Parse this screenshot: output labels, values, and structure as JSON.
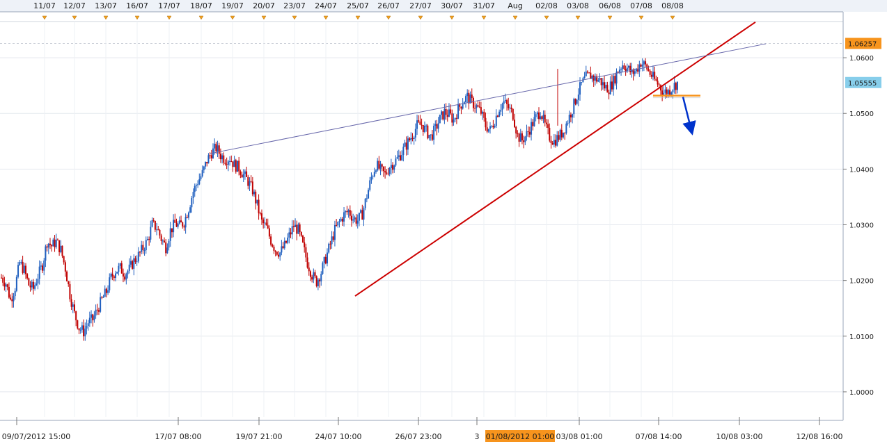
{
  "chart_data": {
    "type": "candlestick",
    "title": "",
    "xlabel": "",
    "ylabel": "",
    "ylim": [
      0.9955,
      1.0665
    ],
    "y_ticks": [
      "1.0000",
      "1.0100",
      "1.0200",
      "1.0300",
      "1.0400",
      "1.0500",
      "1.0600"
    ],
    "top_date_labels": [
      "11/07",
      "12/07",
      "13/07",
      "16/07",
      "17/07",
      "18/07",
      "19/07",
      "20/07",
      "23/07",
      "24/07",
      "25/07",
      "26/07",
      "27/07",
      "30/07",
      "31/07",
      "Aug",
      "02/08",
      "03/08",
      "06/08",
      "07/08",
      "08/08"
    ],
    "bottom_time_labels": [
      "09/07/2012 15:00",
      "17/07 08:00",
      "19/07 21:00",
      "24/07 10:00",
      "26/07 23:00",
      "3",
      "03/08 01:00",
      "07/08 14:00",
      "10/08 03:00",
      "12/08 16:00"
    ],
    "crosshair_time_label": "01/08/2012 01:00",
    "price_labels": [
      {
        "text": "1.06257",
        "value": 1.06257,
        "color": "#f7941d"
      },
      {
        "text": "1.05555",
        "value": 1.05555,
        "color": "#87ceeb"
      }
    ],
    "price_path": [
      [
        0,
        1.0205
      ],
      [
        1.5,
        1.0195
      ],
      [
        3,
        1.0165
      ],
      [
        4.5,
        1.0188
      ],
      [
        6,
        1.0232
      ],
      [
        7.5,
        1.0218
      ],
      [
        9,
        1.0192
      ],
      [
        10.5,
        1.0185
      ],
      [
        12,
        1.0208
      ],
      [
        13.5,
        1.0228
      ],
      [
        15,
        1.027
      ],
      [
        16.5,
        1.0262
      ],
      [
        18,
        1.027
      ],
      [
        19.5,
        1.0255
      ],
      [
        21,
        1.0222
      ],
      [
        22.5,
        1.0175
      ],
      [
        24,
        1.014
      ],
      [
        25.5,
        1.0115
      ],
      [
        27,
        1.0108
      ],
      [
        28.5,
        1.0125
      ],
      [
        30,
        1.013
      ],
      [
        31.5,
        1.0148
      ],
      [
        33,
        1.0165
      ],
      [
        34.5,
        1.018
      ],
      [
        36,
        1.0205
      ],
      [
        37.5,
        1.0218
      ],
      [
        39,
        1.0222
      ],
      [
        40.5,
        1.0212
      ],
      [
        42,
        1.022
      ],
      [
        43.5,
        1.0235
      ],
      [
        45,
        1.0245
      ],
      [
        46.5,
        1.0258
      ],
      [
        48,
        1.0272
      ],
      [
        49.5,
        1.03
      ],
      [
        51,
        1.0295
      ],
      [
        52.5,
        1.0275
      ],
      [
        54,
        1.026
      ],
      [
        55.5,
        1.029
      ],
      [
        57,
        1.0302
      ],
      [
        58.5,
        1.0298
      ],
      [
        60,
        1.0305
      ],
      [
        61.5,
        1.033
      ],
      [
        63,
        1.036
      ],
      [
        64.5,
        1.0378
      ],
      [
        66,
        1.0392
      ],
      [
        67.5,
        1.0415
      ],
      [
        69,
        1.043
      ],
      [
        70.5,
        1.0438
      ],
      [
        72,
        1.0425
      ],
      [
        73.5,
        1.0418
      ],
      [
        75,
        1.042
      ],
      [
        76.5,
        1.0408
      ],
      [
        78,
        1.0402
      ],
      [
        79.5,
        1.039
      ],
      [
        81,
        1.0378
      ],
      [
        82.5,
        1.0362
      ],
      [
        84,
        1.0335
      ],
      [
        85.5,
        1.0305
      ],
      [
        87,
        1.0295
      ],
      [
        88.5,
        1.0272
      ],
      [
        90,
        1.0255
      ],
      [
        91.5,
        1.025
      ],
      [
        93,
        1.0262
      ],
      [
        94.5,
        1.028
      ],
      [
        96,
        1.0298
      ],
      [
        97.5,
        1.029
      ],
      [
        99,
        1.0262
      ],
      [
        100.5,
        1.0232
      ],
      [
        102,
        1.021
      ],
      [
        103.5,
        1.0198
      ],
      [
        105,
        1.0215
      ],
      [
        106.5,
        1.024
      ],
      [
        108,
        1.0265
      ],
      [
        109.5,
        1.029
      ],
      [
        111,
        1.0305
      ],
      [
        112.5,
        1.0318
      ],
      [
        114,
        1.0325
      ],
      [
        115.5,
        1.0312
      ],
      [
        117,
        1.0308
      ],
      [
        118.5,
        1.032
      ],
      [
        120,
        1.0352
      ],
      [
        121.5,
        1.0385
      ],
      [
        123,
        1.0408
      ],
      [
        124.5,
        1.0398
      ],
      [
        126,
        1.039
      ],
      [
        127.5,
        1.0405
      ],
      [
        129,
        1.0412
      ],
      [
        130.5,
        1.0422
      ],
      [
        132,
        1.0435
      ],
      [
        133.5,
        1.0448
      ],
      [
        135,
        1.0462
      ],
      [
        136.5,
        1.0478
      ],
      [
        138,
        1.048
      ],
      [
        139.5,
        1.0468
      ],
      [
        141,
        1.0458
      ],
      [
        142.5,
        1.0472
      ],
      [
        144,
        1.049
      ],
      [
        145.5,
        1.0502
      ],
      [
        147,
        1.0498
      ],
      [
        148.5,
        1.0488
      ],
      [
        150,
        1.0508
      ],
      [
        151.5,
        1.0522
      ],
      [
        153,
        1.053
      ],
      [
        154.5,
        1.052
      ],
      [
        156,
        1.0512
      ],
      [
        157.5,
        1.0502
      ],
      [
        159,
        1.0478
      ],
      [
        160.5,
        1.047
      ],
      [
        162,
        1.0488
      ],
      [
        163.5,
        1.051
      ],
      [
        165,
        1.052
      ],
      [
        166.5,
        1.051
      ],
      [
        168,
        1.0498
      ],
      [
        169.5,
        1.046
      ],
      [
        171,
        1.0452
      ],
      [
        172.5,
        1.0462
      ],
      [
        174,
        1.0478
      ],
      [
        175.5,
        1.0492
      ],
      [
        177,
        1.0505
      ],
      [
        178.5,
        1.0478
      ],
      [
        180,
        1.0458
      ],
      [
        181.5,
        1.045
      ],
      [
        183,
        1.0458
      ],
      [
        184.5,
        1.0468
      ],
      [
        186,
        1.0488
      ],
      [
        187.5,
        1.0508
      ],
      [
        189,
        1.0532
      ],
      [
        190.5,
        1.0552
      ],
      [
        192,
        1.0565
      ],
      [
        193.5,
        1.0568
      ],
      [
        195,
        1.0562
      ],
      [
        196.5,
        1.056
      ],
      [
        198,
        1.0548
      ],
      [
        199.5,
        1.0545
      ],
      [
        201,
        1.0558
      ],
      [
        202.5,
        1.0578
      ],
      [
        204,
        1.0588
      ],
      [
        205.5,
        1.0582
      ],
      [
        207,
        1.0572
      ],
      [
        208.5,
        1.0578
      ],
      [
        210,
        1.0592
      ],
      [
        211.5,
        1.0585
      ],
      [
        213,
        1.0572
      ],
      [
        214.5,
        1.056
      ],
      [
        216,
        1.055
      ],
      [
        217.5,
        1.0538
      ],
      [
        219,
        1.054
      ],
      [
        220.5,
        1.0548
      ],
      [
        222,
        1.0555
      ]
    ],
    "trendlines": [
      {
        "from": [
          510,
          1.0172
        ],
        "to": [
          1085,
          1.0664
        ],
        "color": "#cc0000",
        "kind": "support"
      },
      {
        "from": [
          302,
          1.0428
        ],
        "to": [
          1100,
          1.0625
        ],
        "color": "#6666aa",
        "kind": "resistance"
      }
    ],
    "horizontal_level": {
      "value": 1.0532,
      "color": "#f7941d"
    },
    "arrow": {
      "direction": "down",
      "color": "#0033cc"
    },
    "grid": true
  }
}
